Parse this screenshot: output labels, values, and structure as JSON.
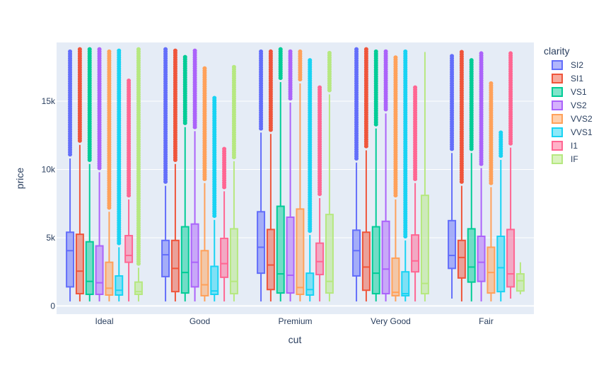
{
  "chart_data": {
    "type": "box",
    "title": "",
    "xlabel": "cut",
    "ylabel": "price",
    "ylim": [
      -600,
      19300
    ],
    "y_ticks": [
      0,
      5000,
      10000,
      15000
    ],
    "y_tick_labels": [
      "0",
      "5k",
      "10k",
      "15k"
    ],
    "grid": true,
    "legend_title": "clarity",
    "legend_position": "right",
    "categories": [
      "Ideal",
      "Good",
      "Premium",
      "Very Good",
      "Fair"
    ],
    "series": [
      {
        "name": "SI2",
        "color": "#636efa",
        "boxes": [
          {
            "q1": 1400,
            "median": 4050,
            "q3": 5400,
            "lower": 330,
            "upper": 10800,
            "outliers_to": 18800
          },
          {
            "q1": 2150,
            "median": 3750,
            "q3": 4800,
            "lower": 330,
            "upper": 8800,
            "outliers_to": 18800
          },
          {
            "q1": 2400,
            "median": 4300,
            "q3": 6900,
            "lower": 330,
            "upper": 12700,
            "outliers_to": 18800
          },
          {
            "q1": 2200,
            "median": 4050,
            "q3": 5550,
            "lower": 330,
            "upper": 10500,
            "outliers_to": 18800
          },
          {
            "q1": 2750,
            "median": 3700,
            "q3": 6250,
            "lower": 540,
            "upper": 11200,
            "outliers_to": 18300
          }
        ]
      },
      {
        "name": "SI1",
        "color": "#ef553b",
        "boxes": [
          {
            "q1": 900,
            "median": 2550,
            "q3": 5250,
            "lower": 330,
            "upper": 11800,
            "outliers_to": 18800
          },
          {
            "q1": 1050,
            "median": 2750,
            "q3": 4800,
            "lower": 330,
            "upper": 10400,
            "outliers_to": 18700
          },
          {
            "q1": 1200,
            "median": 3000,
            "q3": 5600,
            "lower": 330,
            "upper": 12600,
            "outliers_to": 18800
          },
          {
            "q1": 1150,
            "median": 2850,
            "q3": 5400,
            "lower": 330,
            "upper": 11400,
            "outliers_to": 18800
          },
          {
            "q1": 2050,
            "median": 3550,
            "q3": 4800,
            "lower": 330,
            "upper": 8800,
            "outliers_to": 18600
          }
        ]
      },
      {
        "name": "VS1",
        "color": "#00cc96",
        "boxes": [
          {
            "q1": 850,
            "median": 1800,
            "q3": 4700,
            "lower": 330,
            "upper": 10400,
            "outliers_to": 18800
          },
          {
            "q1": 950,
            "median": 2450,
            "q3": 5800,
            "lower": 330,
            "upper": 13100,
            "outliers_to": 18400
          },
          {
            "q1": 950,
            "median": 2350,
            "q3": 7300,
            "lower": 330,
            "upper": 16400,
            "outliers_to": 18800
          },
          {
            "q1": 900,
            "median": 2400,
            "q3": 5800,
            "lower": 330,
            "upper": 13000,
            "outliers_to": 18800
          },
          {
            "q1": 1750,
            "median": 2850,
            "q3": 5650,
            "lower": 330,
            "upper": 11200,
            "outliers_to": 18000
          }
        ]
      },
      {
        "name": "VS2",
        "color": "#ab63fa",
        "boxes": [
          {
            "q1": 850,
            "median": 1700,
            "q3": 4400,
            "lower": 330,
            "upper": 9800,
            "outliers_to": 18800
          },
          {
            "q1": 1400,
            "median": 3200,
            "q3": 6000,
            "lower": 330,
            "upper": 12800,
            "outliers_to": 18700
          },
          {
            "q1": 950,
            "median": 2250,
            "q3": 6500,
            "lower": 330,
            "upper": 14900,
            "outliers_to": 18800
          },
          {
            "q1": 900,
            "median": 2700,
            "q3": 6200,
            "lower": 330,
            "upper": 14100,
            "outliers_to": 18800
          },
          {
            "q1": 1800,
            "median": 3200,
            "q3": 5100,
            "lower": 330,
            "upper": 10100,
            "outliers_to": 18500
          }
        ]
      },
      {
        "name": "VVS2",
        "color": "#ffa15a",
        "boxes": [
          {
            "q1": 800,
            "median": 1300,
            "q3": 3200,
            "lower": 330,
            "upper": 6900,
            "outliers_to": 18800
          },
          {
            "q1": 750,
            "median": 1550,
            "q3": 4050,
            "lower": 330,
            "upper": 9000,
            "outliers_to": 17400
          },
          {
            "q1": 850,
            "median": 1350,
            "q3": 7100,
            "lower": 330,
            "upper": 16300,
            "outliers_to": 18800
          },
          {
            "q1": 750,
            "median": 1000,
            "q3": 3500,
            "lower": 330,
            "upper": 7800,
            "outliers_to": 18200
          },
          {
            "q1": 950,
            "median": 2450,
            "q3": 4300,
            "lower": 330,
            "upper": 8700,
            "outliers_to": 16300
          }
        ]
      },
      {
        "name": "VVS1",
        "color": "#19d3f3",
        "boxes": [
          {
            "q1": 800,
            "median": 1150,
            "q3": 2200,
            "lower": 330,
            "upper": 4300,
            "outliers_to": 18700
          },
          {
            "q1": 850,
            "median": 1100,
            "q3": 2900,
            "lower": 330,
            "upper": 6300,
            "outliers_to": 15400
          },
          {
            "q1": 800,
            "median": 1200,
            "q3": 2400,
            "lower": 330,
            "upper": 5200,
            "outliers_to": 18000
          },
          {
            "q1": 750,
            "median": 900,
            "q3": 2500,
            "lower": 330,
            "upper": 4800,
            "outliers_to": 18800
          },
          {
            "q1": 1050,
            "median": 2800,
            "q3": 5100,
            "lower": 330,
            "upper": 10700,
            "outliers_to": 12700
          }
        ]
      },
      {
        "name": "I1",
        "color": "#ff6692",
        "boxes": [
          {
            "q1": 3200,
            "median": 3700,
            "q3": 5150,
            "lower": 330,
            "upper": 7800,
            "outliers_to": 16500
          },
          {
            "q1": 2100,
            "median": 3100,
            "q3": 4950,
            "lower": 330,
            "upper": 8400,
            "outliers_to": 11500
          },
          {
            "q1": 2300,
            "median": 3250,
            "q3": 4600,
            "lower": 330,
            "upper": 7900,
            "outliers_to": 16000
          },
          {
            "q1": 2500,
            "median": 3300,
            "q3": 5200,
            "lower": 330,
            "upper": 9000,
            "outliers_to": 16000
          },
          {
            "q1": 1400,
            "median": 2350,
            "q3": 5600,
            "lower": 540,
            "upper": 11600,
            "outliers_to": 18500
          }
        ]
      },
      {
        "name": "IF",
        "color": "#b6e880",
        "boxes": [
          {
            "q1": 850,
            "median": 1050,
            "q3": 1750,
            "lower": 330,
            "upper": 2800,
            "outliers_to": 18800
          },
          {
            "q1": 900,
            "median": 1800,
            "q3": 5650,
            "lower": 330,
            "upper": 10600,
            "outliers_to": 17500
          },
          {
            "q1": 950,
            "median": 1800,
            "q3": 6700,
            "lower": 330,
            "upper": 15500,
            "outliers_to": 18700
          },
          {
            "q1": 900,
            "median": 1650,
            "q3": 8100,
            "lower": 330,
            "upper": 18600,
            "outliers_to": 18600
          },
          {
            "q1": 1100,
            "median": 1850,
            "q3": 2350,
            "lower": 850,
            "upper": 3200,
            "outliers_to": 3200
          }
        ]
      }
    ]
  }
}
